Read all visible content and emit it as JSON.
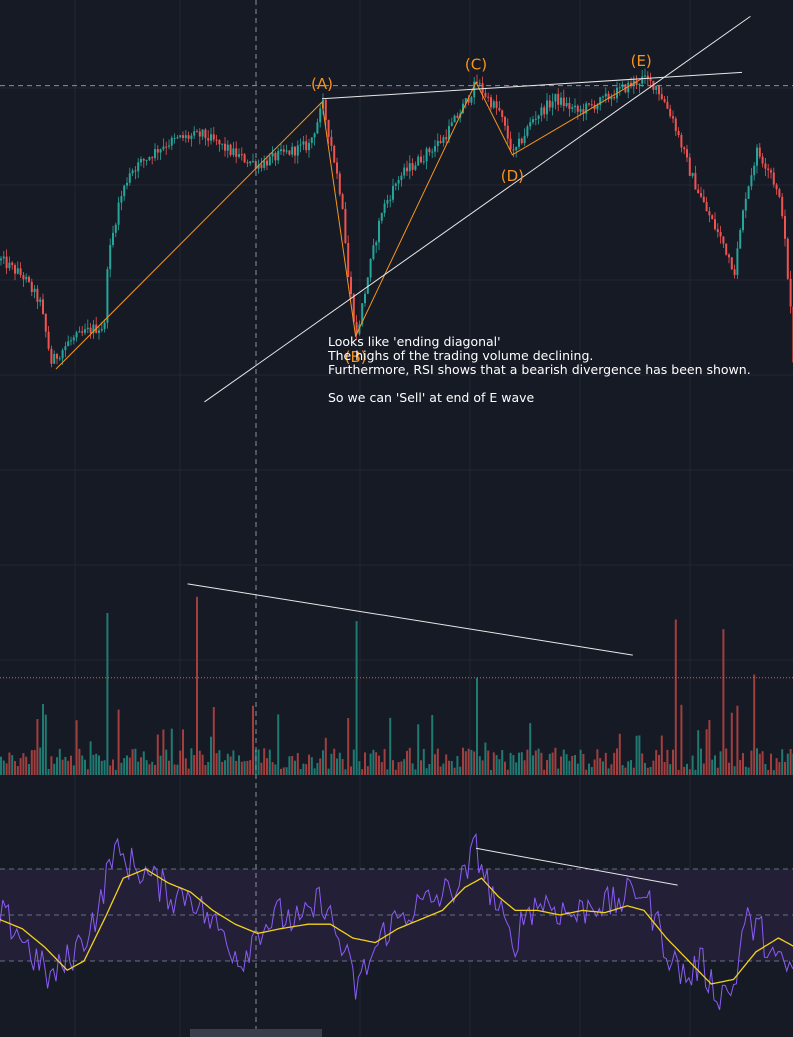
{
  "colors": {
    "background": "#161a25",
    "grid": "#232735",
    "up": "#26a69a",
    "down": "#ef5350",
    "volume_up": "#1f7a72",
    "volume_down": "#a13f3f",
    "wave": "#f7941d",
    "trendline": "#e8e8e8",
    "rsi_line": "#8a5cf6",
    "rsi_ma": "#f2d21b",
    "rsi_band": "#231f37",
    "note_text": "#ffffff"
  },
  "annotations": {
    "note_lines": [
      "Looks like 'ending diagonal'",
      "The highs of the trading volume declining.",
      "Furthermore, RSI shows that a bearish divergence has been shown.",
      "",
      "So we can 'Sell' at end of E wave"
    ]
  },
  "chart_data": [
    {
      "type": "candlestick",
      "panel": "price",
      "title": "",
      "xlabel": "",
      "ylabel": "",
      "y_unit": "relative price",
      "wave_points": [
        {
          "label": "(A)",
          "x": 115,
          "price": 91
        },
        {
          "label": "(B)",
          "x": 127,
          "price": 20
        },
        {
          "label": "(C)",
          "x": 170,
          "price": 97
        },
        {
          "label": "(D)",
          "x": 183,
          "price": 75
        },
        {
          "label": "(E)",
          "x": 229,
          "price": 98
        }
      ],
      "wave_start": {
        "x": 20,
        "price": 10
      },
      "trendlines": [
        {
          "name": "upper",
          "from": {
            "x": 115,
            "price": 92
          },
          "to": {
            "x": 265,
            "price": 100
          }
        },
        {
          "name": "lower",
          "from": {
            "x": 73,
            "price": 0
          },
          "to": {
            "x": 268,
            "price": 117
          }
        }
      ],
      "horizontal_line_price": 96,
      "candle_path": [
        [
          0,
          43
        ],
        [
          8,
          38
        ],
        [
          14,
          30
        ],
        [
          18,
          12
        ],
        [
          24,
          18
        ],
        [
          32,
          22
        ],
        [
          37,
          23
        ],
        [
          38,
          42
        ],
        [
          42,
          60
        ],
        [
          46,
          70
        ],
        [
          52,
          74
        ],
        [
          58,
          78
        ],
        [
          64,
          80
        ],
        [
          72,
          81
        ],
        [
          80,
          77
        ],
        [
          86,
          74
        ],
        [
          92,
          72
        ],
        [
          100,
          75
        ],
        [
          110,
          78
        ],
        [
          115,
          90
        ],
        [
          118,
          78
        ],
        [
          122,
          60
        ],
        [
          124,
          38
        ],
        [
          127,
          20
        ],
        [
          131,
          38
        ],
        [
          136,
          58
        ],
        [
          142,
          68
        ],
        [
          150,
          74
        ],
        [
          158,
          80
        ],
        [
          164,
          88
        ],
        [
          170,
          97
        ],
        [
          174,
          92
        ],
        [
          178,
          88
        ],
        [
          183,
          75
        ],
        [
          190,
          86
        ],
        [
          198,
          92
        ],
        [
          206,
          88
        ],
        [
          214,
          91
        ],
        [
          222,
          95
        ],
        [
          229,
          98
        ],
        [
          234,
          96
        ],
        [
          240,
          86
        ],
        [
          246,
          70
        ],
        [
          252,
          58
        ],
        [
          258,
          48
        ],
        [
          262,
          40
        ],
        [
          266,
          63
        ],
        [
          270,
          76
        ],
        [
          275,
          70
        ],
        [
          279,
          58
        ],
        [
          282,
          28
        ],
        [
          284,
          -5
        ]
      ]
    },
    {
      "type": "bar",
      "panel": "volume",
      "title": "",
      "xlabel": "",
      "ylabel": "",
      "y_unit": "relative volume",
      "highlight_bars": [
        {
          "x": 38,
          "value": 100,
          "direction": "up"
        },
        {
          "x": 70,
          "value": 110,
          "direction": "down"
        },
        {
          "x": 127,
          "value": 95,
          "direction": "up"
        },
        {
          "x": 170,
          "value": 60,
          "direction": "up"
        },
        {
          "x": 241,
          "value": 96,
          "direction": "down"
        },
        {
          "x": 258,
          "value": 90,
          "direction": "down"
        },
        {
          "x": 269,
          "value": 62,
          "direction": "down"
        }
      ],
      "divergence_line": {
        "from": {
          "x": 67,
          "value": 118
        },
        "to": {
          "x": 226,
          "value": 74
        }
      },
      "dotted_level": 60
    },
    {
      "type": "line",
      "panel": "rsi",
      "title": "",
      "xlabel": "",
      "ylabel": "",
      "ylim": [
        0,
        100
      ],
      "levels": [
        70,
        50,
        30
      ],
      "series": [
        {
          "role": "rsi",
          "points": [
            [
              0,
              50
            ],
            [
              6,
              44
            ],
            [
              12,
              32
            ],
            [
              18,
              22
            ],
            [
              24,
              30
            ],
            [
              30,
              40
            ],
            [
              36,
              55
            ],
            [
              40,
              78
            ],
            [
              44,
              74
            ],
            [
              50,
              70
            ],
            [
              56,
              64
            ],
            [
              62,
              58
            ],
            [
              68,
              60
            ],
            [
              72,
              52
            ],
            [
              76,
              46
            ],
            [
              80,
              42
            ],
            [
              86,
              30
            ],
            [
              92,
              44
            ],
            [
              100,
              50
            ],
            [
              108,
              46
            ],
            [
              115,
              58
            ],
            [
              120,
              42
            ],
            [
              124,
              30
            ],
            [
              127,
              18
            ],
            [
              132,
              30
            ],
            [
              138,
              44
            ],
            [
              146,
              52
            ],
            [
              154,
              56
            ],
            [
              160,
              60
            ],
            [
              166,
              66
            ],
            [
              170,
              80
            ],
            [
              174,
              64
            ],
            [
              178,
              52
            ],
            [
              183,
              36
            ],
            [
              188,
              52
            ],
            [
              194,
              56
            ],
            [
              200,
              52
            ],
            [
              206,
              50
            ],
            [
              212,
              56
            ],
            [
              218,
              54
            ],
            [
              224,
              58
            ],
            [
              229,
              62
            ],
            [
              234,
              48
            ],
            [
              240,
              30
            ],
            [
              246,
              22
            ],
            [
              250,
              30
            ],
            [
              256,
              16
            ],
            [
              262,
              18
            ],
            [
              266,
              48
            ],
            [
              272,
              42
            ],
            [
              278,
              28
            ],
            [
              284,
              26
            ]
          ]
        },
        {
          "role": "rsi-ma",
          "points": [
            [
              0,
              48
            ],
            [
              8,
              44
            ],
            [
              16,
              36
            ],
            [
              24,
              26
            ],
            [
              30,
              30
            ],
            [
              38,
              50
            ],
            [
              44,
              66
            ],
            [
              52,
              70
            ],
            [
              60,
              64
            ],
            [
              68,
              60
            ],
            [
              76,
              52
            ],
            [
              84,
              46
            ],
            [
              92,
              42
            ],
            [
              100,
              44
            ],
            [
              110,
              46
            ],
            [
              118,
              46
            ],
            [
              126,
              40
            ],
            [
              134,
              38
            ],
            [
              142,
              44
            ],
            [
              150,
              48
            ],
            [
              158,
              52
            ],
            [
              166,
              62
            ],
            [
              172,
              66
            ],
            [
              178,
              58
            ],
            [
              184,
              52
            ],
            [
              192,
              52
            ],
            [
              200,
              50
            ],
            [
              208,
              52
            ],
            [
              216,
              51
            ],
            [
              224,
              54
            ],
            [
              230,
              52
            ],
            [
              238,
              40
            ],
            [
              246,
              30
            ],
            [
              254,
              20
            ],
            [
              262,
              22
            ],
            [
              270,
              34
            ],
            [
              278,
              40
            ],
            [
              284,
              36
            ]
          ]
        }
      ],
      "divergence_line": {
        "from": {
          "x": 170,
          "value": 79
        },
        "to": {
          "x": 242,
          "value": 63
        }
      }
    }
  ]
}
